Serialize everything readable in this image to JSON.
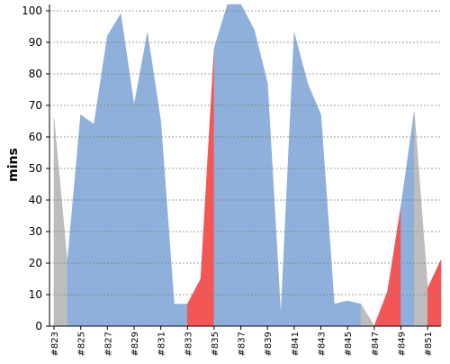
{
  "chart_data": {
    "type": "area",
    "title": "",
    "xlabel": "",
    "ylabel": "mins",
    "ylim": [
      0,
      102
    ],
    "yticks": [
      0,
      10,
      20,
      30,
      40,
      50,
      60,
      70,
      80,
      90,
      100
    ],
    "grid": "horizontal dashed",
    "categories": [
      "#823",
      "#824",
      "#825",
      "#826",
      "#827",
      "#828",
      "#829",
      "#830",
      "#831",
      "#832",
      "#833",
      "#834",
      "#835",
      "#836",
      "#837",
      "#838",
      "#839",
      "#840",
      "#841",
      "#842",
      "#843",
      "#844",
      "#845",
      "#846",
      "#847",
      "#848",
      "#849",
      "#850",
      "#851",
      "#852"
    ],
    "xtick_labels": [
      "#823",
      "#825",
      "#827",
      "#829",
      "#831",
      "#833",
      "#835",
      "#837",
      "#839",
      "#841",
      "#843",
      "#845",
      "#847",
      "#849",
      "#851"
    ],
    "values": [
      66,
      20,
      67,
      64,
      92,
      99,
      70,
      93,
      65,
      7,
      7,
      15,
      88,
      102,
      102,
      94,
      77,
      3,
      93,
      77,
      67,
      7,
      8,
      7,
      0,
      11,
      38,
      68,
      12,
      21
    ],
    "status": [
      "success",
      "unstable",
      "success",
      "success",
      "success",
      "success",
      "success",
      "success",
      "success",
      "success",
      "success",
      "failure",
      "failure",
      "success",
      "success",
      "success",
      "success",
      "success",
      "success",
      "success",
      "success",
      "success",
      "success",
      "success",
      "unstable",
      "failure",
      "failure",
      "success",
      "unstable",
      "failure"
    ],
    "colors": {
      "success": "#8eb0da",
      "failure": "#f25656",
      "unstable": "#bdbdbd",
      "axis": "#000000",
      "grid": "#808080"
    }
  }
}
